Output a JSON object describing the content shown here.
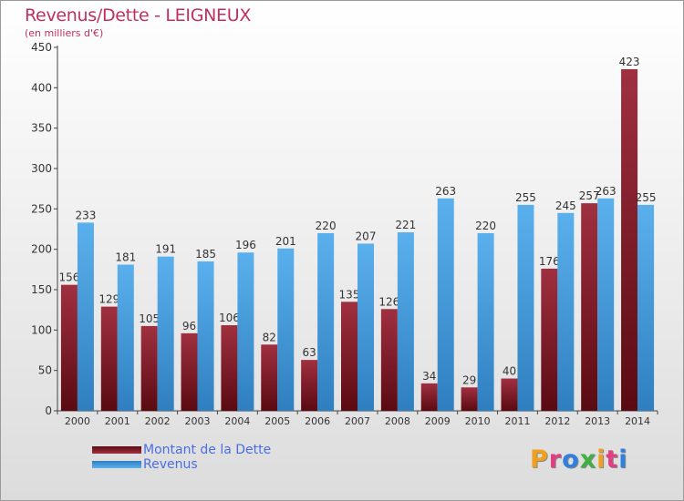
{
  "header": {
    "title": "Revenus/Dette - LEIGNEUX",
    "subtitle": "(en milliers d'€)"
  },
  "legend": [
    {
      "label": "Montant de la Dette",
      "color": "#7a1520"
    },
    {
      "label": "Revenus",
      "color": "#4aa0e0"
    }
  ],
  "logo": {
    "text": "Proxiti",
    "colors": [
      "#f0a020",
      "#e04080",
      "#3080e0",
      "#40b040",
      "#f0a020",
      "#e04080",
      "#3080e0"
    ]
  },
  "chart_data": {
    "type": "bar",
    "categories": [
      "2000",
      "2001",
      "2002",
      "2003",
      "2004",
      "2005",
      "2006",
      "2007",
      "2008",
      "2009",
      "2010",
      "2011",
      "2012",
      "2013",
      "2014"
    ],
    "series": [
      {
        "name": "Montant de la Dette",
        "values": [
          156,
          129,
          105,
          96,
          106,
          82,
          63,
          135,
          126,
          34,
          29,
          40,
          176,
          257,
          423
        ],
        "color": "#7a1520"
      },
      {
        "name": "Revenus",
        "values": [
          233,
          181,
          191,
          185,
          196,
          201,
          220,
          207,
          221,
          263,
          220,
          255,
          245,
          263,
          255
        ],
        "color": "#4aa0e0"
      }
    ],
    "ylim": [
      0,
      450
    ],
    "yticks": [
      0,
      50,
      100,
      150,
      200,
      250,
      300,
      350,
      400,
      450
    ],
    "grid": false
  }
}
